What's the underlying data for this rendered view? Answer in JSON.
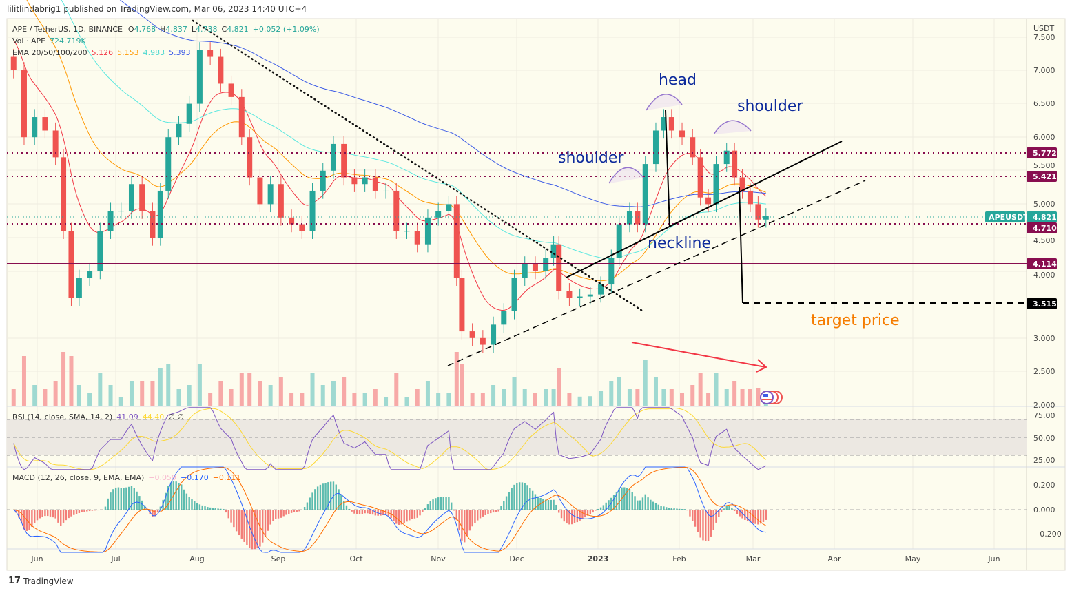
{
  "header": {
    "published": "lilitlindabrig1 published on TradingView.com, Mar 06, 2023 14:40 UTC+4"
  },
  "footer": {
    "brand": "TradingView"
  },
  "legend": {
    "symbol": "APE / TetherUS, 1D, BINANCE",
    "open_label": "O",
    "open": "4.768",
    "high_label": "H",
    "high": "4.837",
    "low_label": "L",
    "low": "4.738",
    "close_label": "C",
    "close": "4.821",
    "change": "+0.052 (+1.09%)",
    "vol_label": "Vol · APE",
    "vol": "724.719K",
    "ema_label": "EMA 20/50/100/200",
    "ema": [
      "5.126",
      "5.153",
      "4.983",
      "5.393"
    ],
    "rsi_label": "RSI (14, close, SMA, 14, 2)",
    "rsi": "41.09",
    "rsi_sma": "44.40",
    "rsi_extra": "∅  ∅",
    "macd_label": "MACD (12, 26, close, 9, EMA, EMA)",
    "macd_hist": "−0.059",
    "macd": "−0.170",
    "macd_signal": "−0.111"
  },
  "colors": {
    "up": "#26a69a",
    "down": "#ef5350",
    "ema20": "#f23645",
    "ema50": "#ff9800",
    "ema100": "#5ce8e0",
    "ema200": "#3d5ce6",
    "level": "#880e4f",
    "annotation": "#0d2a9c",
    "target": "#f57c00",
    "rsi": "#7e57c2",
    "rsi_sma": "#fdd835"
  },
  "annotations": {
    "head": "head",
    "shoulder_left": "shoulder",
    "shoulder_right": "shoulder",
    "neckline": "neckline",
    "target": "target price"
  },
  "price_axis": {
    "unit": "USDT",
    "ticks": [
      "7.500",
      "7.000",
      "6.500",
      "6.000",
      "5.500",
      "5.000",
      "4.500",
      "4.000",
      "3.000",
      "2.500",
      "2.000"
    ]
  },
  "price_tags": {
    "symbol": "APEUSDT",
    "last": "4.821",
    "levels": [
      "5.772",
      "5.421",
      "4.710",
      "4.114",
      "3.515"
    ]
  },
  "rsi_axis": [
    "75.00",
    "50.00",
    "25.00"
  ],
  "macd_axis": [
    "0.200",
    "0.000",
    "−0.200"
  ],
  "time_axis": [
    "Jun",
    "Jul",
    "Aug",
    "Sep",
    "Oct",
    "Nov",
    "Dec",
    "2023",
    "Feb",
    "Mar",
    "Apr",
    "May",
    "Jun"
  ],
  "chart_data": {
    "type": "candlestick",
    "title": "APE / TetherUS, 1D, BINANCE",
    "ylabel": "USDT",
    "ylim": [
      2.0,
      7.6
    ],
    "horizontal_levels": [
      5.772,
      5.421,
      4.71,
      4.114,
      3.515
    ],
    "pattern": "head and shoulders",
    "closes": [
      [
        "2022-05-23",
        7.0
      ],
      [
        "2022-05-27",
        6.0
      ],
      [
        "2022-05-31",
        6.3
      ],
      [
        "2022-06-04",
        6.1
      ],
      [
        "2022-06-08",
        5.7
      ],
      [
        "2022-06-11",
        4.6
      ],
      [
        "2022-06-14",
        3.6
      ],
      [
        "2022-06-17",
        3.9
      ],
      [
        "2022-06-21",
        4.0
      ],
      [
        "2022-06-25",
        4.6
      ],
      [
        "2022-06-29",
        4.9
      ],
      [
        "2022-07-03",
        4.9
      ],
      [
        "2022-07-07",
        5.3
      ],
      [
        "2022-07-11",
        4.9
      ],
      [
        "2022-07-15",
        4.5
      ],
      [
        "2022-07-18",
        5.2
      ],
      [
        "2022-07-21",
        6.0
      ],
      [
        "2022-07-25",
        6.2
      ],
      [
        "2022-07-29",
        6.5
      ],
      [
        "2022-08-02",
        7.3
      ],
      [
        "2022-08-06",
        7.2
      ],
      [
        "2022-08-10",
        6.8
      ],
      [
        "2022-08-14",
        6.6
      ],
      [
        "2022-08-18",
        6.0
      ],
      [
        "2022-08-21",
        5.4
      ],
      [
        "2022-08-25",
        5.0
      ],
      [
        "2022-08-29",
        5.3
      ],
      [
        "2022-09-02",
        4.8
      ],
      [
        "2022-09-06",
        4.7
      ],
      [
        "2022-09-10",
        4.6
      ],
      [
        "2022-09-14",
        5.2
      ],
      [
        "2022-09-18",
        5.5
      ],
      [
        "2022-09-22",
        5.9
      ],
      [
        "2022-09-26",
        5.4
      ],
      [
        "2022-09-30",
        5.3
      ],
      [
        "2022-10-04",
        5.4
      ],
      [
        "2022-10-08",
        5.2
      ],
      [
        "2022-10-12",
        5.2
      ],
      [
        "2022-10-16",
        4.6
      ],
      [
        "2022-10-20",
        4.6
      ],
      [
        "2022-10-24",
        4.4
      ],
      [
        "2022-10-28",
        4.8
      ],
      [
        "2022-11-01",
        4.9
      ],
      [
        "2022-11-05",
        5.0
      ],
      [
        "2022-11-08",
        3.9
      ],
      [
        "2022-11-10",
        3.1
      ],
      [
        "2022-11-14",
        3.0
      ],
      [
        "2022-11-18",
        2.9
      ],
      [
        "2022-11-22",
        3.2
      ],
      [
        "2022-11-26",
        3.4
      ],
      [
        "2022-11-30",
        3.9
      ],
      [
        "2022-12-04",
        4.1
      ],
      [
        "2022-12-08",
        4.0
      ],
      [
        "2022-12-12",
        4.2
      ],
      [
        "2022-12-15",
        4.4
      ],
      [
        "2022-12-17",
        3.7
      ],
      [
        "2022-12-21",
        3.6
      ],
      [
        "2022-12-25",
        3.62
      ],
      [
        "2022-12-29",
        3.65
      ],
      [
        "2023-01-02",
        3.8
      ],
      [
        "2023-01-06",
        4.2
      ],
      [
        "2023-01-09",
        4.7
      ],
      [
        "2023-01-13",
        4.9
      ],
      [
        "2023-01-16",
        4.7
      ],
      [
        "2023-01-19",
        5.6
      ],
      [
        "2023-01-23",
        6.1
      ],
      [
        "2023-01-26",
        6.3
      ],
      [
        "2023-01-29",
        6.1
      ],
      [
        "2023-02-02",
        6.0
      ],
      [
        "2023-02-06",
        5.7
      ],
      [
        "2023-02-09",
        5.1
      ],
      [
        "2023-02-12",
        5.0
      ],
      [
        "2023-02-15",
        5.6
      ],
      [
        "2023-02-19",
        5.8
      ],
      [
        "2023-02-22",
        5.4
      ],
      [
        "2023-02-25",
        5.2
      ],
      [
        "2023-02-28",
        5.0
      ],
      [
        "2023-03-03",
        4.77
      ],
      [
        "2023-03-06",
        4.821
      ]
    ]
  }
}
